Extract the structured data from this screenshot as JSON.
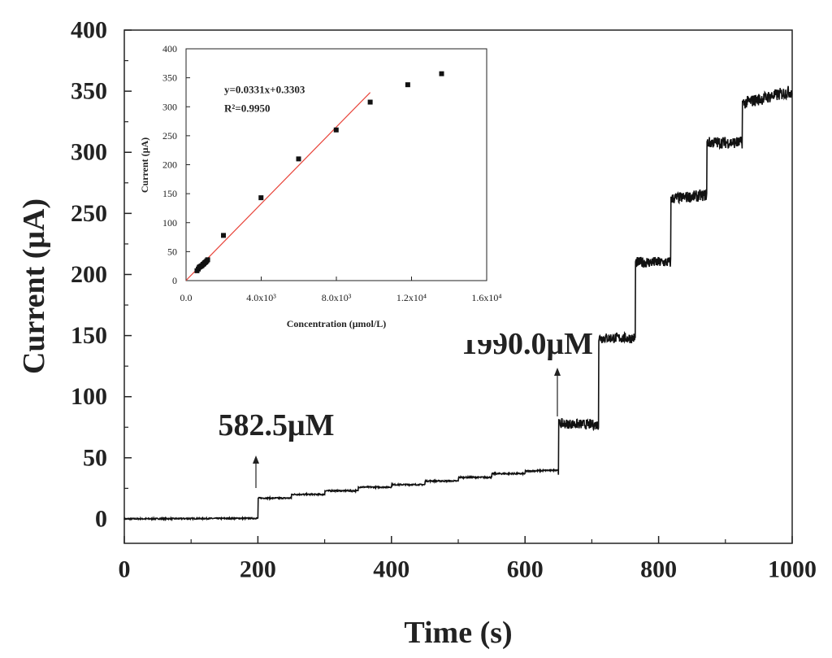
{
  "chart_data": [
    {
      "type": "line",
      "xlabel": "Time (s)",
      "ylabel": "Current (μA)",
      "xlim": [
        0,
        1000
      ],
      "ylim": [
        -20,
        400
      ],
      "xticks": [
        0,
        200,
        400,
        600,
        800,
        1000
      ],
      "yticks": [
        0,
        50,
        100,
        150,
        200,
        250,
        300,
        350,
        400
      ],
      "series": [
        {
          "x": [
            0,
            200,
            200.1,
            250,
            250.1,
            300,
            300.1,
            350,
            350.1,
            400,
            400.1,
            450,
            450.1,
            500,
            500.1,
            550,
            550.1,
            600,
            600.1,
            650,
            650.1,
            710,
            710.1,
            765,
            765.1,
            818,
            818.1,
            872,
            872.1,
            925,
            925.1,
            1000
          ],
          "y": [
            0,
            0.5,
            17,
            17,
            20,
            20,
            23,
            23,
            26,
            26,
            28,
            28,
            31,
            31,
            34,
            34,
            37,
            37,
            39,
            40,
            78,
            77,
            148,
            148,
            210,
            210,
            262,
            265,
            308,
            308,
            340,
            350
          ],
          "noise": 3
        }
      ],
      "annotations": [
        {
          "text": "582.5μM",
          "x": 200,
          "y": 17
        },
        {
          "text": "1990.0μM",
          "x": 650,
          "y": 78
        }
      ]
    },
    {
      "type": "scatter",
      "xlabel": "Concentration (μmol/L)",
      "ylabel": "Current (μA)",
      "xlim": [
        0,
        16000
      ],
      "ylim": [
        0,
        400
      ],
      "xtick_labels": [
        "0.0",
        "4.0x10³",
        "8.0x10³",
        "1.2x10⁴",
        "1.6x10⁴"
      ],
      "xticks": [
        0,
        4000,
        8000,
        12000,
        16000
      ],
      "yticks": [
        0,
        50,
        100,
        150,
        200,
        250,
        300,
        350,
        400
      ],
      "points": {
        "x": [
          582.5,
          650,
          700,
          750,
          800,
          850,
          900,
          950,
          1000,
          1050,
          1100,
          1150,
          1990,
          3990,
          5990,
          7990,
          9800,
          11800,
          13600
        ],
        "y": [
          17,
          20,
          23,
          24,
          25,
          26,
          28,
          29,
          31,
          32,
          34,
          36,
          78,
          143,
          210,
          260,
          308,
          338,
          357
        ]
      },
      "fit": {
        "equation": "y=0.0331x+0.3303",
        "r2": "R²=0.9950",
        "x_range": [
          0,
          9800
        ],
        "slope": 0.0331,
        "intercept": 0.3303,
        "color": "#e8443a"
      },
      "marker_color": "#111111"
    }
  ]
}
